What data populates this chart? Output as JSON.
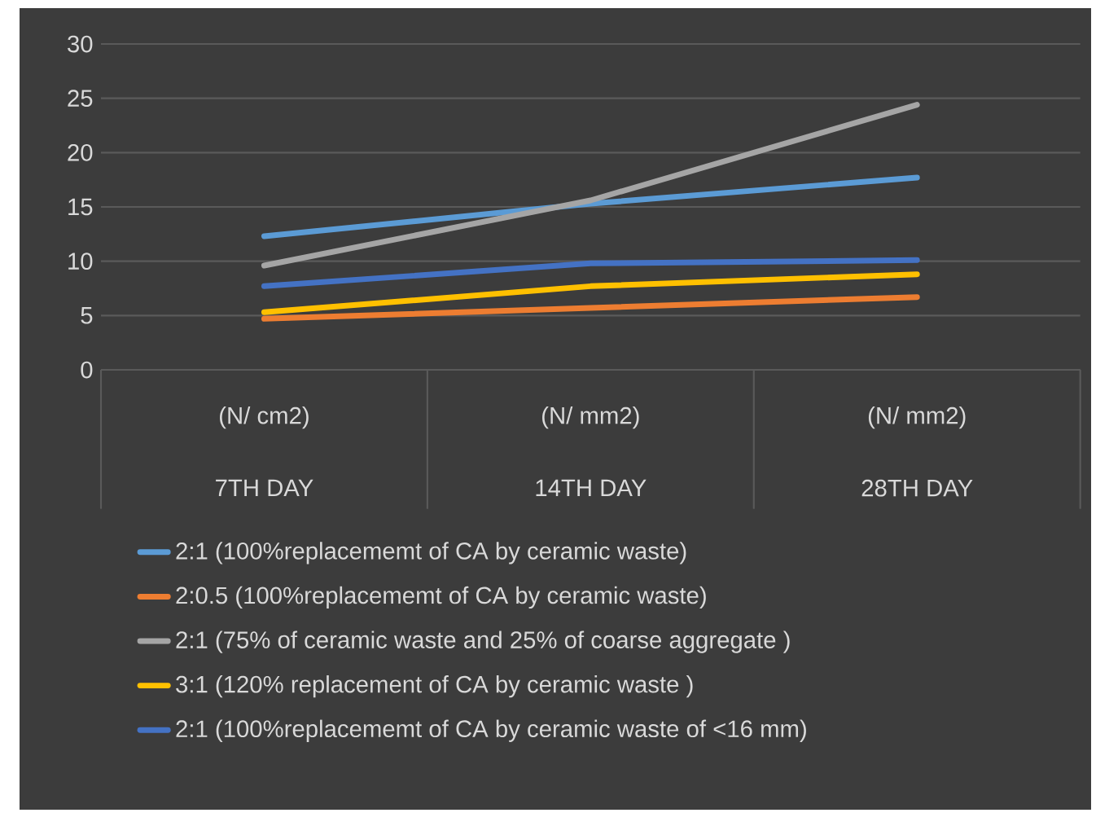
{
  "chart_data": {
    "type": "line",
    "categories": [
      "7TH DAY",
      "14TH DAY",
      "28TH DAY"
    ],
    "annotations": [
      "(N/ cm2)",
      "(N/ mm2)",
      "(N/ mm2)"
    ],
    "series": [
      {
        "name": "2:1  (100%replacememt of CA by ceramic waste)",
        "color": "#5b9bd5",
        "values": [
          12.3,
          15.3,
          17.7
        ]
      },
      {
        "name": "2:0.5 (100%replacememt of CA by ceramic waste)",
        "color": "#ed7d31",
        "values": [
          4.7,
          5.7,
          6.7
        ]
      },
      {
        "name": "2:1   (75% of ceramic waste and 25% of coarse aggregate )",
        "color": "#a5a5a5",
        "values": [
          9.6,
          15.6,
          24.4
        ]
      },
      {
        "name": "3:1  (120%  replacement of CA by ceramic waste )",
        "color": "#ffc000",
        "values": [
          5.3,
          7.7,
          8.8
        ]
      },
      {
        "name": "2:1  (100%replacememt of CA by ceramic waste of <16 mm)",
        "color": "#4472c4",
        "values": [
          7.7,
          9.8,
          10.1
        ]
      }
    ],
    "ylim": [
      0,
      30
    ],
    "yticks": [
      0,
      5,
      10,
      15,
      20,
      25,
      30
    ],
    "grid": "y",
    "legend": "bottom",
    "marker": "none",
    "line_style": "solid"
  }
}
